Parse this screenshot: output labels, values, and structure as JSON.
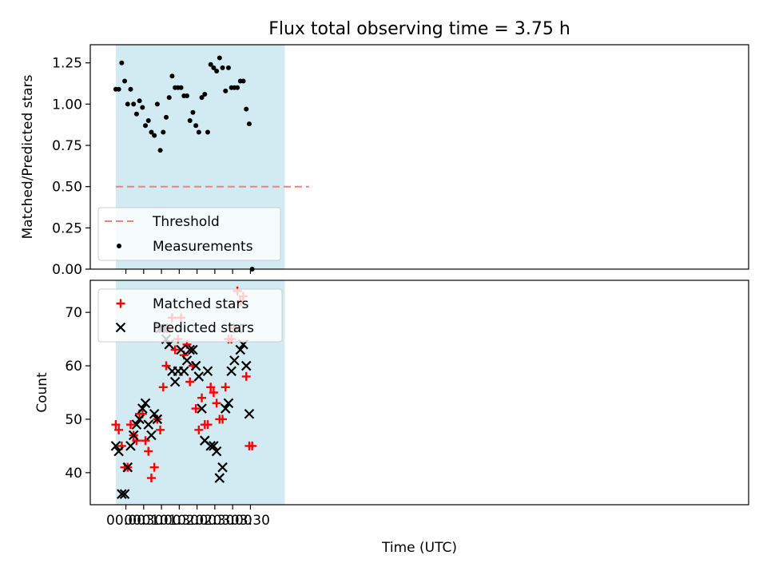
{
  "chart_data": [
    {
      "type": "scatter",
      "title": "Flux total observing time = 3.75 h",
      "xlabel": "",
      "ylabel": "Matched/Predicted stars",
      "ylim": [
        0.0,
        1.36
      ],
      "yticks": [
        "0.00",
        "0.25",
        "0.50",
        "0.75",
        "1.00",
        "1.25"
      ],
      "legend": {
        "position": "lower-left",
        "entries": [
          "Threshold",
          "Measurements"
        ]
      },
      "threshold": 0.5,
      "threshold_color": "#f08080",
      "shade_color": "#add8e6",
      "series": [
        {
          "name": "Measurements",
          "color": "#000000",
          "x": [
            "23:43",
            "23:48",
            "23:53",
            "23:58",
            "00:03",
            "00:08",
            "00:13",
            "00:18",
            "00:23",
            "00:28",
            "00:33",
            "00:38",
            "00:43",
            "00:48",
            "00:53",
            "00:58",
            "01:03",
            "01:08",
            "01:13",
            "01:18",
            "01:23",
            "01:28",
            "01:33",
            "01:38",
            "01:43",
            "01:48",
            "01:53",
            "01:58",
            "02:03",
            "02:08",
            "02:13",
            "02:18",
            "02:23",
            "02:28",
            "02:33",
            "02:38",
            "02:43",
            "02:48",
            "02:53",
            "02:58",
            "03:03",
            "03:08",
            "03:13",
            "03:18",
            "03:23",
            "03:28",
            "03:33"
          ],
          "y": [
            1.09,
            1.09,
            1.25,
            1.14,
            1.0,
            1.09,
            1.0,
            0.94,
            1.02,
            0.98,
            0.87,
            0.9,
            0.83,
            0.81,
            1.0,
            0.72,
            0.83,
            0.92,
            1.04,
            1.17,
            1.1,
            1.1,
            1.1,
            1.05,
            1.05,
            0.9,
            0.95,
            0.87,
            0.83,
            1.04,
            1.06,
            0.83,
            1.24,
            1.22,
            1.2,
            1.28,
            1.22,
            1.08,
            1.22,
            1.1,
            1.1,
            1.1,
            1.14,
            1.14,
            0.97,
            0.88,
            0.0
          ]
        }
      ]
    },
    {
      "type": "scatter",
      "title": "",
      "xlabel": "Time (UTC)",
      "ylabel": "Count",
      "ylim": [
        34,
        76
      ],
      "yticks": [
        "40",
        "50",
        "60",
        "70"
      ],
      "xticks": [
        "00:00",
        "00:30",
        "01:00",
        "01:30",
        "02:00",
        "02:30",
        "03:00",
        "03:30"
      ],
      "legend": {
        "position": "top-left",
        "entries": [
          "Matched stars",
          "Predicted stars"
        ]
      },
      "series": [
        {
          "name": "Matched stars",
          "marker": "plus",
          "color": "#ff0000",
          "x": [
            "23:43",
            "23:48",
            "23:53",
            "23:58",
            "00:03",
            "00:08",
            "00:13",
            "00:18",
            "00:23",
            "00:28",
            "00:33",
            "00:38",
            "00:43",
            "00:48",
            "00:53",
            "00:58",
            "01:03",
            "01:08",
            "01:13",
            "01:18",
            "01:23",
            "01:28",
            "01:33",
            "01:38",
            "01:43",
            "01:48",
            "01:53",
            "01:58",
            "02:03",
            "02:08",
            "02:13",
            "02:18",
            "02:23",
            "02:28",
            "02:33",
            "02:38",
            "02:43",
            "02:48",
            "02:53",
            "02:58",
            "03:03",
            "03:08",
            "03:13",
            "03:18",
            "03:23",
            "03:28",
            "03:33"
          ],
          "y": [
            49,
            48,
            45,
            41,
            41,
            49,
            47,
            46,
            51,
            51,
            46,
            44,
            39,
            41,
            50,
            48,
            56,
            60,
            67,
            69,
            63,
            65,
            69,
            62,
            64,
            57,
            60,
            52,
            48,
            54,
            49,
            49,
            56,
            55,
            53,
            50,
            50,
            56,
            65,
            65,
            67,
            74,
            72,
            73,
            58,
            45,
            45
          ]
        },
        {
          "name": "Predicted stars",
          "marker": "x",
          "color": "#000000",
          "x": [
            "23:43",
            "23:48",
            "23:53",
            "23:58",
            "00:03",
            "00:08",
            "00:13",
            "00:18",
            "00:23",
            "00:28",
            "00:33",
            "00:38",
            "00:43",
            "00:48",
            "00:53",
            "00:58",
            "01:03",
            "01:08",
            "01:13",
            "01:18",
            "01:23",
            "01:28",
            "01:33",
            "01:38",
            "01:43",
            "01:48",
            "01:53",
            "01:58",
            "02:03",
            "02:08",
            "02:13",
            "02:18",
            "02:23",
            "02:28",
            "02:33",
            "02:38",
            "02:43",
            "02:48",
            "02:53",
            "02:58",
            "03:03",
            "03:08",
            "03:13",
            "03:18",
            "03:23",
            "03:28"
          ],
          "y": [
            45,
            44,
            36,
            36,
            41,
            45,
            47,
            49,
            50,
            52,
            53,
            49,
            47,
            51,
            50,
            67,
            67,
            65,
            64,
            59,
            57,
            59,
            63,
            59,
            61,
            63,
            63,
            60,
            58,
            52,
            46,
            59,
            45,
            45,
            44,
            39,
            41,
            52,
            53,
            59,
            61,
            67,
            63,
            64,
            60,
            51
          ]
        }
      ]
    }
  ]
}
